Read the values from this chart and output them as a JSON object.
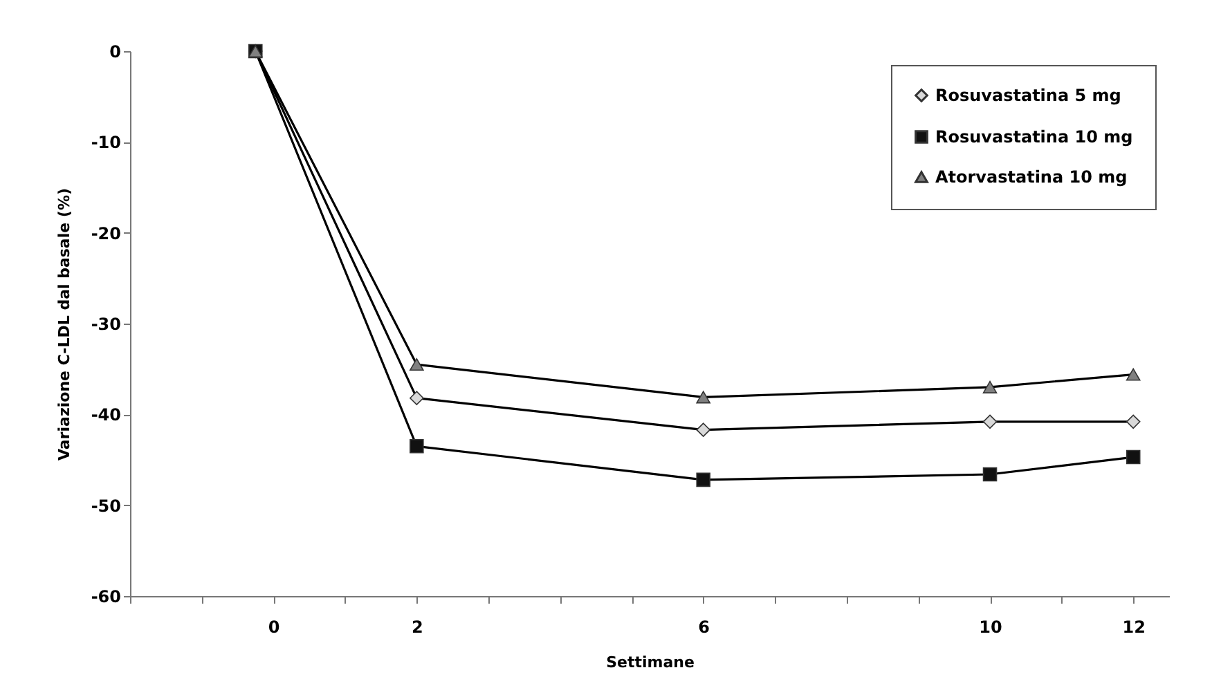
{
  "chart_data": {
    "type": "line",
    "xlabel": "Settimane",
    "ylabel": "Variazione C-LDL dal basale (%)",
    "x": [
      -0.25,
      2,
      6,
      10,
      12
    ],
    "xlim": [
      -2,
      12.5
    ],
    "xticks": [
      {
        "value": -2,
        "label": null
      },
      {
        "value": -1,
        "label": null
      },
      0,
      {
        "value": 1,
        "label": null
      },
      2,
      {
        "value": 3,
        "label": null
      },
      {
        "value": 4,
        "label": null
      },
      {
        "value": 5,
        "label": null
      },
      6,
      {
        "value": 7,
        "label": null
      },
      {
        "value": 8,
        "label": null
      },
      {
        "value": 9,
        "label": null
      },
      10,
      {
        "value": 11,
        "label": null
      },
      12
    ],
    "ylim": [
      -60,
      0
    ],
    "yticks": [
      -60,
      -50,
      -40,
      -30,
      -20,
      -10,
      0
    ],
    "grid": false,
    "legend": "top right",
    "line_style": "solid",
    "series": [
      {
        "name": "Rosuvastatina 5 mg",
        "color": "#d9d9d9",
        "marker": "diamond",
        "values": [
          0,
          -38.2,
          -41.7,
          -40.8,
          -40.8
        ]
      },
      {
        "name": "Rosuvastatina 10 mg",
        "color": "#111111",
        "marker": "square",
        "values": [
          0,
          -43.5,
          -47.2,
          -46.6,
          -44.7
        ]
      },
      {
        "name": "Atorvastatina 10 mg",
        "color": "#808080",
        "marker": "triangle",
        "values": [
          0,
          -34.5,
          -38.1,
          -37,
          -35.6
        ]
      }
    ]
  }
}
